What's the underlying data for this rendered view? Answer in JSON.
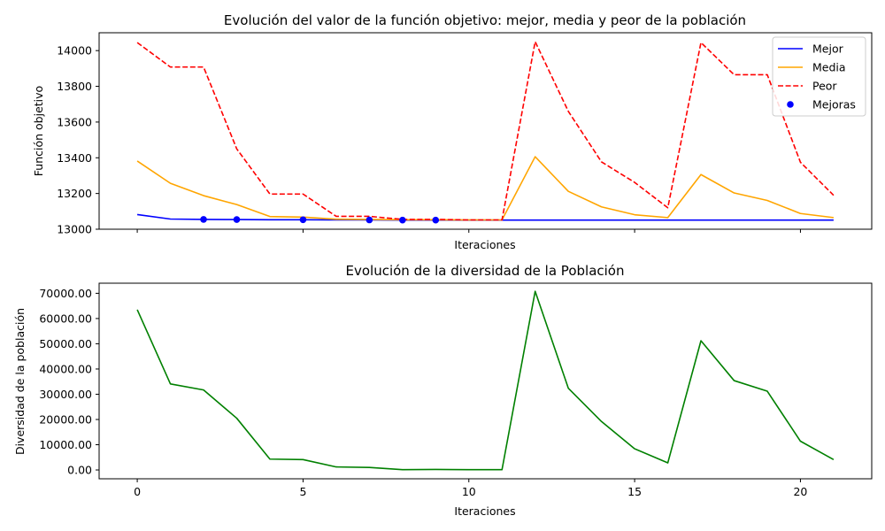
{
  "chart_data": [
    {
      "type": "line",
      "title": "Evolución del valor de la función objetivo: mejor, media y peor de la población",
      "xlabel": "Iteraciones",
      "ylabel": "Función objetivo",
      "xlim": [
        -1.15,
        22.15
      ],
      "ylim": [
        13000,
        14100
      ],
      "x_ticks": [
        0,
        5,
        10,
        15,
        20
      ],
      "x_tick_labels_visible": false,
      "y_ticks": [
        13000,
        13200,
        13400,
        13600,
        13800,
        14000
      ],
      "y_tick_labels": [
        "13000",
        "13200",
        "13400",
        "13600",
        "13800",
        "14000"
      ],
      "legend_position": "top-right",
      "grid": false,
      "x": [
        0,
        1,
        2,
        3,
        4,
        5,
        6,
        7,
        8,
        9,
        10,
        11,
        12,
        13,
        14,
        15,
        16,
        17,
        18,
        19,
        20,
        21
      ],
      "series": [
        {
          "name": "Mejor",
          "color": "#0000ff",
          "style": "solid",
          "values": [
            13082,
            13057,
            13055,
            13054,
            13053,
            13053,
            13052,
            13052,
            13051,
            13051,
            13051,
            13051,
            13051,
            13051,
            13051,
            13051,
            13051,
            13051,
            13051,
            13051,
            13051,
            13051
          ]
        },
        {
          "name": "Media",
          "color": "#ffa500",
          "style": "solid",
          "values": [
            13382,
            13257,
            13188,
            13138,
            13071,
            13068,
            13056,
            13055,
            13053,
            13053,
            13052,
            13052,
            13406,
            13212,
            13125,
            13081,
            13065,
            13306,
            13203,
            13161,
            13088,
            13065
          ]
        },
        {
          "name": "Peor",
          "color": "#ff0000",
          "style": "dashed",
          "values": [
            14045,
            13908,
            13908,
            13450,
            13197,
            13197,
            13072,
            13072,
            13055,
            13055,
            13052,
            13052,
            14050,
            13660,
            13377,
            13262,
            13120,
            14045,
            13865,
            13865,
            13375,
            13190
          ]
        },
        {
          "name": "Mejoras",
          "color": "#0000ff",
          "style": "markers",
          "x": [
            2,
            3,
            5,
            7,
            8,
            9
          ],
          "values": [
            13055,
            13054,
            13053,
            13052,
            13051,
            13051
          ]
        }
      ]
    },
    {
      "type": "line",
      "title": "Evolución de la diversidad de la Población",
      "xlabel": "Iteraciones",
      "ylabel": "Diversidad de la población",
      "xlim": [
        -1.15,
        22.15
      ],
      "ylim": [
        -3500,
        74000
      ],
      "x_ticks": [
        0,
        5,
        10,
        15,
        20
      ],
      "x_tick_labels": [
        "0",
        "5",
        "10",
        "15",
        "20"
      ],
      "y_ticks": [
        0,
        10000,
        20000,
        30000,
        40000,
        50000,
        60000,
        70000
      ],
      "y_tick_labels": [
        "0.00",
        "10000.00",
        "20000.00",
        "30000.00",
        "40000.00",
        "50000.00",
        "60000.00",
        "70000.00"
      ],
      "grid": false,
      "x": [
        0,
        1,
        2,
        3,
        4,
        5,
        6,
        7,
        8,
        9,
        10,
        11,
        12,
        13,
        14,
        15,
        16,
        17,
        18,
        19,
        20,
        21
      ],
      "series": [
        {
          "color": "#008000",
          "style": "solid",
          "values": [
            63500,
            34100,
            31700,
            20500,
            4300,
            4100,
            1200,
            1000,
            100,
            200,
            100,
            100,
            70800,
            32400,
            19200,
            8400,
            2800,
            51200,
            35400,
            31200,
            11400,
            4100
          ]
        }
      ]
    }
  ]
}
